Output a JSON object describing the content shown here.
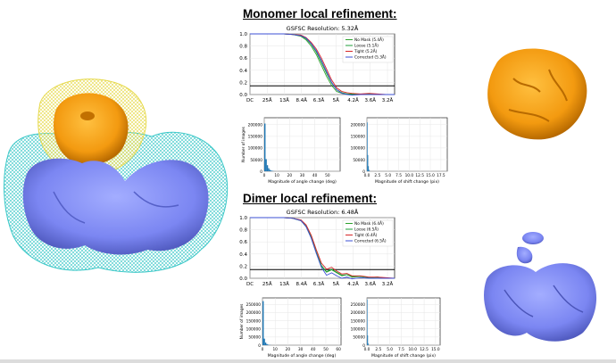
{
  "sections": [
    {
      "title": "Monomer local refinement:"
    },
    {
      "title": "Dimer local refinement:"
    }
  ],
  "colors": {
    "no_mask": "#2ca02c",
    "loose": "#1f9e3a",
    "tight": "#d62728",
    "corrected": "#3b4fd6",
    "histogram": "#1f77b4",
    "threshold": "#000000",
    "orange_map": "#f39a10",
    "blue_map": "#7b86f2",
    "yellow_mesh": "#e6d94a",
    "cyan_mesh": "#3cc8c8"
  },
  "chart_data": [
    {
      "type": "line",
      "title": "GSFSC Resolution: 5.32Å",
      "x_tick_labels": [
        "DC",
        "25Å",
        "13Å",
        "8.4Å",
        "6.3Å",
        "5Å",
        "4.2Å",
        "3.6Å",
        "3.2Å"
      ],
      "y_tick_labels": [
        "0.0",
        "0.2",
        "0.4",
        "0.6",
        "0.8",
        "1.0"
      ],
      "ylim": [
        0,
        1
      ],
      "x_range": [
        0,
        8.5
      ],
      "threshold": 0.143,
      "legend_position": "top-right",
      "x": [
        0,
        0.5,
        1,
        1.5,
        2,
        2.5,
        3,
        3.3,
        3.6,
        3.9,
        4.2,
        4.5,
        4.8,
        5.1,
        5.4,
        5.7,
        6,
        6.5,
        7,
        7.5,
        8,
        8.5
      ],
      "series": [
        {
          "name": "No Mask (5.4Å)",
          "color_key": "no_mask",
          "values": [
            1,
            1,
            1,
            1,
            1,
            0.99,
            0.96,
            0.9,
            0.8,
            0.66,
            0.48,
            0.3,
            0.15,
            0.05,
            0.02,
            0.01,
            0,
            0,
            0.01,
            0,
            0,
            0
          ]
        },
        {
          "name": "Loose (5.1Å)",
          "color_key": "loose",
          "values": [
            1,
            1,
            1,
            1,
            1,
            0.99,
            0.97,
            0.92,
            0.83,
            0.7,
            0.53,
            0.35,
            0.19,
            0.08,
            0.03,
            0.01,
            0.01,
            0,
            0.01,
            0,
            0,
            0
          ]
        },
        {
          "name": "Tight (5.2Å)",
          "color_key": "tight",
          "values": [
            1,
            1,
            1,
            1,
            1,
            0.99,
            0.98,
            0.94,
            0.86,
            0.75,
            0.6,
            0.42,
            0.24,
            0.11,
            0.05,
            0.03,
            0.02,
            0.01,
            0.02,
            0.01,
            0,
            0
          ]
        },
        {
          "name": "Corrected (5.3Å)",
          "color_key": "corrected",
          "values": [
            1,
            1,
            1,
            1,
            1,
            0.99,
            0.97,
            0.93,
            0.84,
            0.72,
            0.56,
            0.38,
            0.2,
            0.08,
            0.02,
            0,
            -0.01,
            0,
            0,
            0,
            0,
            0
          ]
        }
      ]
    },
    {
      "type": "bar",
      "xlabel": "Magnitude of angle change (deg)",
      "ylabel": "Number of images",
      "x_ticks": [
        0,
        10,
        20,
        30,
        40,
        50
      ],
      "y_ticks": [
        0,
        50000,
        100000,
        150000,
        200000
      ],
      "xlim": [
        0,
        60
      ],
      "ylim": [
        0,
        230000
      ],
      "bins": [
        0,
        1,
        2,
        3,
        4,
        5,
        6,
        7
      ],
      "values": [
        205000,
        52000,
        26000,
        13000,
        6000,
        3000,
        1500,
        600
      ]
    },
    {
      "type": "bar",
      "xlabel": "Magnitude of shift change (pix)",
      "x_ticks": [
        0.0,
        2.5,
        5.0,
        7.5,
        10.0,
        12.5,
        15.0,
        17.5
      ],
      "y_ticks": [
        0,
        50000,
        100000,
        150000,
        200000
      ],
      "xlim": [
        0,
        19
      ],
      "ylim": [
        0,
        230000
      ],
      "bins": [
        0,
        0.15,
        0.3,
        0.45,
        0.6
      ],
      "values": [
        210000,
        70000,
        22000,
        6000,
        1500
      ]
    },
    {
      "type": "line",
      "title": "GSFSC Resolution: 6.48Å",
      "x_tick_labels": [
        "DC",
        "25Å",
        "13Å",
        "8.4Å",
        "6.3Å",
        "5Å",
        "4.2Å",
        "3.6Å",
        "3.2Å"
      ],
      "y_tick_labels": [
        "0.0",
        "0.2",
        "0.4",
        "0.6",
        "0.8",
        "1.0"
      ],
      "ylim": [
        0,
        1
      ],
      "x_range": [
        0,
        8.5
      ],
      "threshold": 0.143,
      "legend_position": "top-right",
      "x": [
        0,
        0.5,
        1,
        1.5,
        2,
        2.5,
        3,
        3.3,
        3.6,
        3.9,
        4.2,
        4.5,
        4.8,
        5.1,
        5.4,
        5.7,
        6,
        6.5,
        7,
        7.5,
        8,
        8.5
      ],
      "series": [
        {
          "name": "No Mask (6.4Å)",
          "color_key": "no_mask",
          "values": [
            1,
            1,
            1,
            1,
            1,
            0.99,
            0.95,
            0.85,
            0.67,
            0.42,
            0.2,
            0.1,
            0.14,
            0.09,
            0.04,
            0.06,
            0.02,
            0.03,
            0.01,
            0.02,
            0,
            0
          ]
        },
        {
          "name": "Loose (6.5Å)",
          "color_key": "loose",
          "values": [
            1,
            1,
            1,
            1,
            1,
            0.99,
            0.95,
            0.86,
            0.68,
            0.43,
            0.21,
            0.11,
            0.15,
            0.1,
            0.05,
            0.06,
            0.03,
            0.03,
            0.01,
            0.02,
            0,
            0
          ]
        },
        {
          "name": "Tight (6.4Å)",
          "color_key": "tight",
          "values": [
            1,
            1,
            1,
            1,
            1,
            0.99,
            0.96,
            0.88,
            0.71,
            0.47,
            0.25,
            0.15,
            0.18,
            0.12,
            0.07,
            0.08,
            0.04,
            0.04,
            0.02,
            0.02,
            0.01,
            0
          ]
        },
        {
          "name": "Corrected (6.5Å)",
          "color_key": "corrected",
          "values": [
            1,
            1,
            1,
            1,
            1,
            0.99,
            0.95,
            0.85,
            0.66,
            0.41,
            0.18,
            0.05,
            0.09,
            0.04,
            0,
            0.02,
            -0.01,
            0.01,
            0,
            0,
            0,
            0
          ]
        }
      ]
    },
    {
      "type": "bar",
      "xlabel": "Magnitude of angle change (deg)",
      "ylabel": "Number of images",
      "x_ticks": [
        0,
        10,
        20,
        30,
        40,
        50,
        60
      ],
      "y_ticks": [
        0,
        50000,
        100000,
        150000,
        200000,
        250000
      ],
      "xlim": [
        0,
        62
      ],
      "ylim": [
        0,
        290000
      ],
      "bins": [
        0,
        1,
        2,
        3,
        4,
        5,
        6
      ],
      "values": [
        270000,
        40000,
        16000,
        7000,
        3000,
        1200,
        500
      ]
    },
    {
      "type": "bar",
      "xlabel": "Magnitude of shift change (pix)",
      "x_ticks": [
        0.0,
        2.5,
        5.0,
        7.5,
        10.0,
        12.5,
        15.0
      ],
      "y_ticks": [
        0,
        50000,
        100000,
        150000,
        200000,
        250000
      ],
      "xlim": [
        0,
        16
      ],
      "ylim": [
        0,
        290000
      ],
      "bins": [
        0,
        0.12,
        0.24,
        0.36
      ],
      "values": [
        280000,
        60000,
        12000,
        2500
      ]
    }
  ]
}
